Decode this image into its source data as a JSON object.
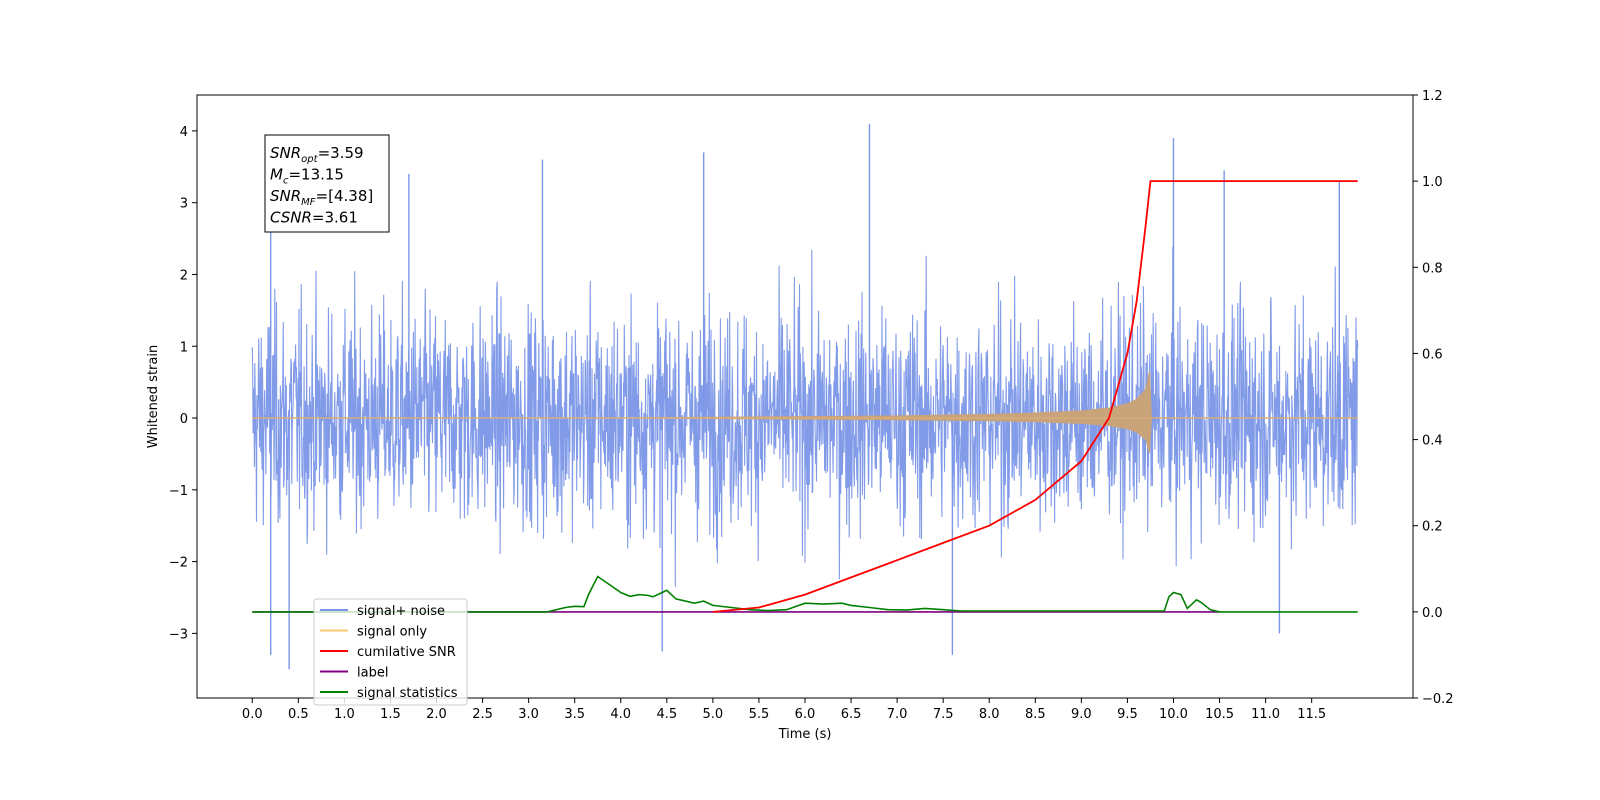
{
  "chart_data": {
    "type": "line",
    "xlabel": "Time (s)",
    "ylabel": "Whitened strain",
    "y2label": "",
    "xlim": [
      -0.6,
      12.6
    ],
    "ylim": [
      -3.9,
      4.5
    ],
    "y2lim": [
      -0.2,
      1.2
    ],
    "x_ticks": [
      "0.0",
      "0.5",
      "1.0",
      "1.5",
      "2.0",
      "2.5",
      "3.0",
      "3.5",
      "4.0",
      "4.5",
      "5.0",
      "5.5",
      "6.0",
      "6.5",
      "7.0",
      "7.5",
      "8.0",
      "8.5",
      "9.0",
      "9.5",
      "10.0",
      "10.5",
      "11.0",
      "11.5"
    ],
    "y_ticks": [
      "−3",
      "−2",
      "−1",
      "0",
      "1",
      "2",
      "3",
      "4"
    ],
    "y2_ticks": [
      "−0.2",
      "0.0",
      "0.2",
      "0.4",
      "0.6",
      "0.8",
      "1.0",
      "1.2"
    ],
    "grid": false,
    "legend_position": "lower-left",
    "legend": [
      {
        "label": "signal+ noise",
        "color": "#7a96e8"
      },
      {
        "label": "signal only",
        "color": "#ffc96e"
      },
      {
        "label": "cumilative SNR",
        "color": "#ff0000"
      },
      {
        "label": "label",
        "color": "#800080"
      },
      {
        "label": "signal statistics",
        "color": "#008000"
      }
    ],
    "legend_shadow_text": [
      "signal only",
      "label"
    ],
    "annotation": {
      "lines": [
        {
          "main": "SNR",
          "sub": "opt",
          "value": "=3.59"
        },
        {
          "main": "M",
          "sub": "c",
          "value": "=13.15"
        },
        {
          "main": "SNR",
          "sub": "MF",
          "value": "=[4.38]"
        },
        {
          "main": "CSNR",
          "sub": "",
          "value": "=3.61"
        }
      ]
    },
    "series": [
      {
        "name": "signal+ noise",
        "axis": "left",
        "color": "#7a96e8",
        "description": "whitened noisy strain, roughly Gaussian, amplitude about -3.5 to 4.1 across 0 to 12 s",
        "x_range": [
          0.0,
          12.0
        ],
        "peaks": [
          [
            0.2,
            2.6
          ],
          [
            1.7,
            3.4
          ],
          [
            3.15,
            3.6
          ],
          [
            4.9,
            3.7
          ],
          [
            6.7,
            4.1
          ],
          [
            10.0,
            3.9
          ],
          [
            10.55,
            3.45
          ],
          [
            11.8,
            3.3
          ]
        ],
        "troughs": [
          [
            0.2,
            -3.3
          ],
          [
            0.4,
            -3.5
          ],
          [
            4.45,
            -3.25
          ],
          [
            7.6,
            -3.3
          ],
          [
            11.15,
            -3.0
          ]
        ]
      },
      {
        "name": "signal only",
        "axis": "left",
        "color": "#ffc96e",
        "description": "chirp signal growing in amplitude until merger",
        "x": [
          0.0,
          4.0,
          6.0,
          7.0,
          8.0,
          8.5,
          9.0,
          9.3,
          9.5,
          9.6,
          9.7,
          9.74,
          9.76,
          12.0
        ],
        "envelope": [
          0.0,
          0.0,
          0.02,
          0.03,
          0.05,
          0.07,
          0.1,
          0.14,
          0.2,
          0.26,
          0.4,
          0.65,
          0.0,
          0.0
        ]
      },
      {
        "name": "cumilative SNR",
        "axis": "right",
        "color": "#ff0000",
        "x": [
          5.0,
          5.5,
          6.0,
          6.5,
          7.0,
          7.5,
          8.0,
          8.5,
          9.0,
          9.3,
          9.5,
          9.6,
          9.7,
          9.74,
          9.75,
          12.0
        ],
        "y": [
          0.0,
          0.01,
          0.04,
          0.08,
          0.12,
          0.16,
          0.2,
          0.26,
          0.35,
          0.45,
          0.6,
          0.72,
          0.9,
          0.98,
          1.0,
          1.0
        ]
      },
      {
        "name": "label",
        "axis": "right",
        "color": "#800080",
        "x": [
          0.0,
          10.5
        ],
        "y": [
          0.0,
          0.0
        ]
      },
      {
        "name": "signal statistics",
        "axis": "right",
        "color": "#008000",
        "x": [
          0.0,
          3.2,
          3.4,
          3.5,
          3.6,
          3.65,
          3.75,
          3.9,
          4.0,
          4.1,
          4.2,
          4.3,
          4.35,
          4.45,
          4.5,
          4.6,
          4.8,
          4.9,
          5.0,
          5.2,
          5.4,
          5.6,
          5.8,
          6.0,
          6.2,
          6.4,
          6.5,
          6.7,
          6.9,
          7.1,
          7.3,
          7.5,
          7.7,
          9.9,
          9.95,
          10.0,
          10.08,
          10.15,
          10.25,
          10.3,
          10.4,
          10.5,
          12.0
        ],
        "y": [
          0.0,
          0.0,
          0.01,
          0.013,
          0.012,
          0.04,
          0.082,
          0.06,
          0.045,
          0.036,
          0.04,
          0.038,
          0.035,
          0.045,
          0.05,
          0.03,
          0.02,
          0.025,
          0.015,
          0.01,
          0.005,
          0.003,
          0.005,
          0.02,
          0.018,
          0.02,
          0.015,
          0.01,
          0.005,
          0.004,
          0.008,
          0.005,
          0.002,
          0.002,
          0.035,
          0.045,
          0.04,
          0.008,
          0.028,
          0.022,
          0.005,
          0.0,
          0.0
        ]
      }
    ]
  }
}
